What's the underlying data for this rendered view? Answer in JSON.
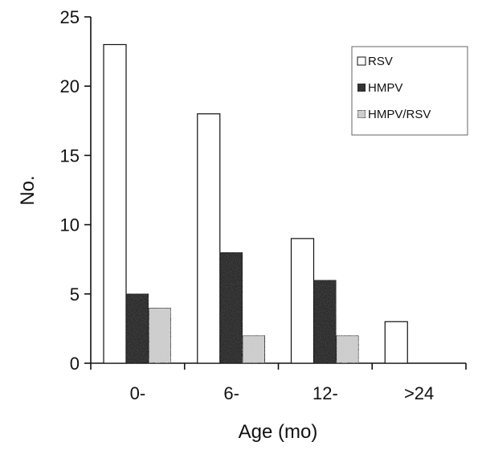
{
  "chart_data": {
    "type": "bar",
    "title": "",
    "xlabel": "Age (mo)",
    "ylabel": "No.",
    "categories": [
      "0-",
      "6-",
      "12-",
      ">24"
    ],
    "series": [
      {
        "name": "RSV",
        "values": [
          23,
          18,
          9,
          3
        ],
        "color": "#ffffff",
        "pattern": "plain"
      },
      {
        "name": "HMPV",
        "values": [
          5,
          8,
          6,
          0
        ],
        "color": "#2b2b2b",
        "pattern": "dark-speckle"
      },
      {
        "name": "HMPV/RSV",
        "values": [
          4,
          2,
          2,
          0
        ],
        "color": "#cfcfcf",
        "pattern": "light-speckle"
      }
    ],
    "ylim": [
      0,
      25
    ],
    "yticks": [
      0,
      5,
      10,
      15,
      20,
      25
    ],
    "grid": false,
    "legend": "top-right"
  }
}
